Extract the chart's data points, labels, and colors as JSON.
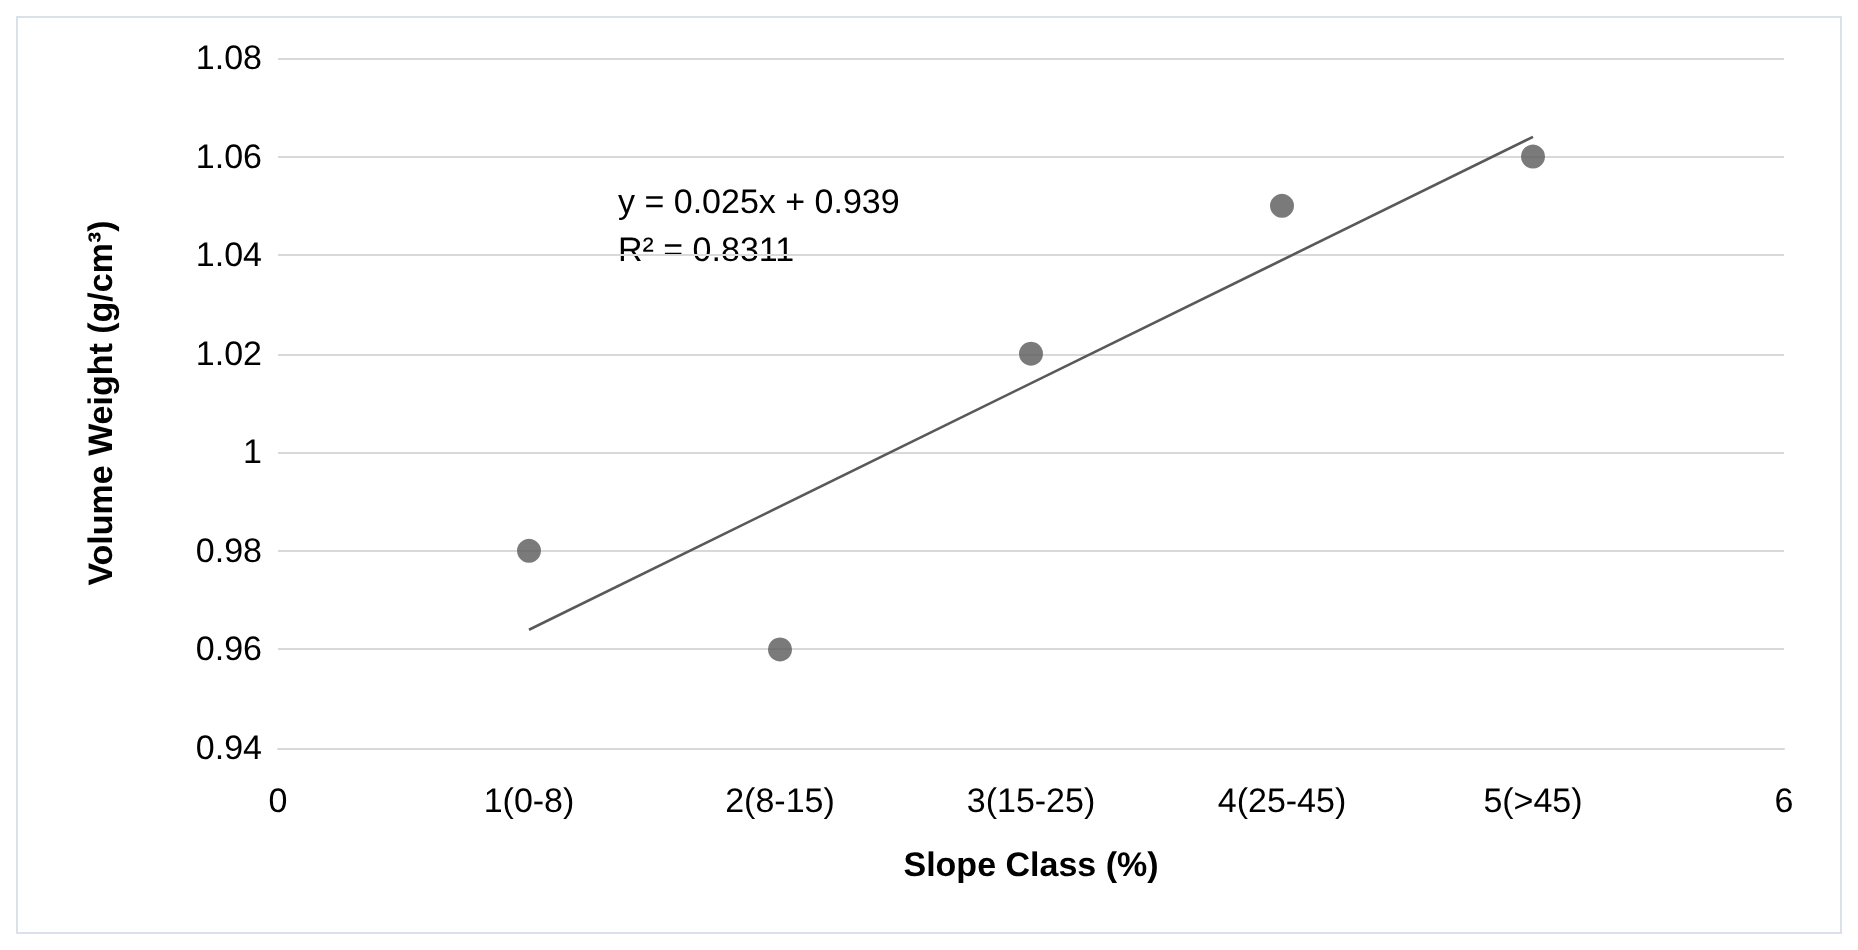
{
  "chart_data": {
    "type": "scatter",
    "xlabel": "Slope Class (%)",
    "ylabel": "Volume Weight (g/cm³)",
    "x": [
      1,
      2,
      3,
      4,
      5
    ],
    "series": [
      {
        "color": "#595959",
        "values": [
          0.98,
          0.96,
          1.02,
          1.05,
          1.06
        ]
      },
      {
        "type": "line",
        "color": "#595959",
        "x": [
          1,
          5
        ],
        "values": [
          0.964,
          1.064
        ],
        "marker": "none"
      }
    ],
    "xlim": [
      0,
      6
    ],
    "xticks": [
      0,
      {
        "value": 1,
        "label": "1(0-8)"
      },
      {
        "value": 2,
        "label": "2(8-15)"
      },
      {
        "value": 3,
        "label": "3(15-25)"
      },
      {
        "value": 4,
        "label": "4(25-45)"
      },
      {
        "value": 5,
        "label": "5(>45)"
      },
      6
    ],
    "ylim": [
      0.94,
      1.08
    ],
    "yticks": [
      0.94,
      0.96,
      0.98,
      1,
      1.02,
      1.04,
      1.06,
      1.08
    ],
    "grid": "y",
    "marker": "circle",
    "annotations": [
      "y = 0.025x + 0.939",
      "R² = 0.8311"
    ]
  }
}
